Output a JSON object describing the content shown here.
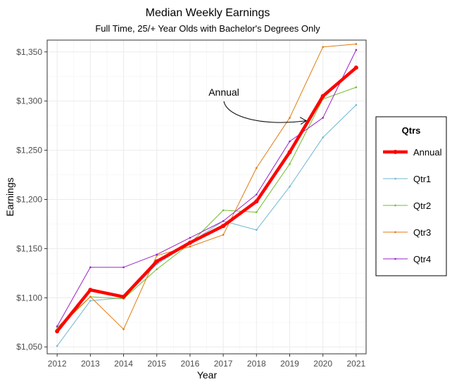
{
  "chart_data": {
    "type": "line",
    "title": "Median Weekly Earnings",
    "subtitle": "Full Time, 25/+ Year Olds with Bachelor's Degrees Only",
    "xlabel": "Year",
    "ylabel": "Earnings",
    "x": [
      2012,
      2013,
      2014,
      2015,
      2016,
      2017,
      2018,
      2019,
      2020,
      2021
    ],
    "xlim": [
      2011.7,
      2021.3
    ],
    "ylim": [
      1043,
      1362
    ],
    "y_ticks": [
      1050,
      1100,
      1150,
      1200,
      1250,
      1300,
      1350
    ],
    "y_tick_labels": [
      "$1,050",
      "$1,100",
      "$1,150",
      "$1,200",
      "$1,250",
      "$1,300",
      "$1,350"
    ],
    "grid": true,
    "legend": {
      "title": "Qtrs",
      "placement": "right"
    },
    "series": [
      {
        "name": "Annual",
        "color": "#ff0000",
        "values": [
          1066,
          1108,
          1101,
          1137,
          1156,
          1173,
          1198,
          1248,
          1305,
          1334
        ]
      },
      {
        "name": "Qtr1",
        "color": "#72b7d2",
        "values": [
          1051,
          1097,
          1100,
          1134,
          1156,
          1178,
          1169,
          1213,
          1263,
          1296
        ]
      },
      {
        "name": "Qtr2",
        "color": "#6fbf2d",
        "values": [
          1070,
          1101,
          1099,
          1129,
          1155,
          1189,
          1187,
          1236,
          1302,
          1314
        ]
      },
      {
        "name": "Qtr3",
        "color": "#e07a0c",
        "values": [
          1068,
          1101,
          1068,
          1143,
          1152,
          1164,
          1232,
          1283,
          1355,
          1358
        ]
      },
      {
        "name": "Qtr4",
        "color": "#9a23c6",
        "values": [
          1071,
          1131,
          1131,
          1144,
          1161,
          1178,
          1205,
          1259,
          1283,
          1352
        ]
      }
    ],
    "annotations": [
      {
        "text": "Annual",
        "points_to": {
          "x": 2019.5,
          "y": 1280
        }
      }
    ]
  }
}
